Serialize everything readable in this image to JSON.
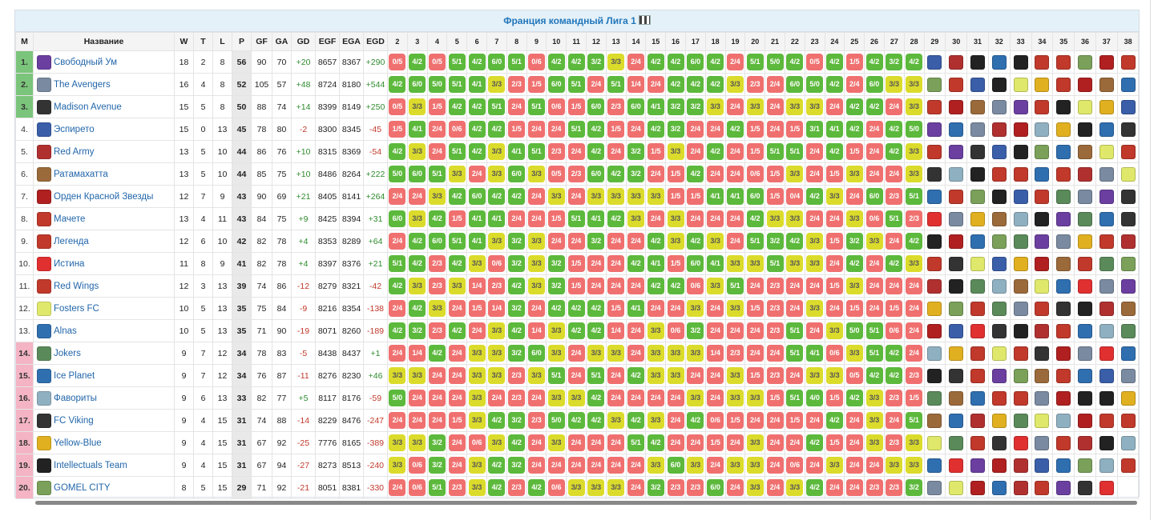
{
  "title": "Франция командный Лига 1",
  "headers": {
    "pos": "M",
    "name": "Название",
    "w": "W",
    "t": "T",
    "l": "L",
    "p": "P",
    "gf": "GF",
    "ga": "GA",
    "gd": "GD",
    "egf": "EGF",
    "ega": "EGA",
    "egd": "EGD"
  },
  "rounds": [
    "2",
    "3",
    "4",
    "5",
    "6",
    "7",
    "8",
    "9",
    "10",
    "11",
    "12",
    "13",
    "14",
    "15",
    "16",
    "17",
    "18",
    "19",
    "20",
    "21",
    "22",
    "23",
    "24",
    "25",
    "26",
    "27",
    "28",
    "29",
    "30",
    "31",
    "32",
    "33",
    "34",
    "35",
    "36",
    "37",
    "38"
  ],
  "rows": [
    {
      "pos": "1.",
      "name": "Свободный Ум",
      "w": "18",
      "t": "2",
      "l": "8",
      "p": "56",
      "gf": "90",
      "ga": "70",
      "gd": "+20",
      "egf": "8657",
      "ega": "8367",
      "egd": "+290",
      "band": "b1",
      "color": "#6b3fa0",
      "results": [
        "0/5",
        "4/2",
        "0/5",
        "5/1",
        "4/2",
        "6/0",
        "5/1",
        "0/6",
        "4/2",
        "4/2",
        "3/2",
        "3/3",
        "2/4",
        "4/2",
        "4/2",
        "6/0",
        "4/2",
        "2/4",
        "5/1",
        "5/0",
        "4/2",
        "0/5",
        "4/2",
        "1/5",
        "4/2",
        "3/2",
        "4/2"
      ],
      "opps": [
        "#3a5ea8",
        "#b03030",
        "#222222",
        "#2f6fb0",
        "#222222",
        "#c0392b",
        "#c0392b",
        "#7aa05a",
        "#b02020",
        "#c0392b"
      ]
    },
    {
      "pos": "2.",
      "name": "The Avengers",
      "w": "16",
      "t": "4",
      "l": "8",
      "p": "52",
      "gf": "105",
      "ga": "57",
      "gd": "+48",
      "egf": "8724",
      "ega": "8180",
      "egd": "+544",
      "band": "b1",
      "color": "#7a8aa0",
      "results": [
        "4/2",
        "6/0",
        "5/0",
        "5/1",
        "4/1",
        "3/3",
        "2/3",
        "1/5",
        "6/0",
        "5/1",
        "2/4",
        "5/1",
        "1/4",
        "2/4",
        "4/2",
        "4/2",
        "4/2",
        "3/3",
        "2/3",
        "2/4",
        "6/0",
        "5/0",
        "4/2",
        "2/4",
        "6/0",
        "3/3",
        "3/3"
      ],
      "opps": [
        "#7aa05a",
        "#c0392b",
        "#3a5ea8",
        "#222222",
        "#dfe86a",
        "#e0b020",
        "#c0392b",
        "#b02020",
        "#9b6a3a",
        "#2f6fb0"
      ]
    },
    {
      "pos": "3.",
      "name": "Madison Avenue",
      "w": "15",
      "t": "5",
      "l": "8",
      "p": "50",
      "gf": "88",
      "ga": "74",
      "gd": "+14",
      "egf": "8399",
      "ega": "8149",
      "egd": "+250",
      "band": "b1",
      "color": "#333333",
      "results": [
        "0/5",
        "3/3",
        "1/5",
        "4/2",
        "4/2",
        "5/1",
        "2/4",
        "5/1",
        "0/6",
        "1/5",
        "6/0",
        "2/3",
        "6/0",
        "4/1",
        "3/2",
        "3/2",
        "3/3",
        "2/4",
        "3/3",
        "2/4",
        "3/3",
        "3/3",
        "2/4",
        "4/2",
        "4/2",
        "2/4",
        "3/3"
      ],
      "opps": [
        "#c0392b",
        "#b02020",
        "#9b6a3a",
        "#7a8aa0",
        "#6b3fa0",
        "#c0392b",
        "#222222",
        "#dfe86a",
        "#e0b020",
        "#3a5ea8"
      ]
    },
    {
      "pos": "4.",
      "name": "Эспирето",
      "w": "15",
      "t": "0",
      "l": "13",
      "p": "45",
      "gf": "78",
      "ga": "80",
      "gd": "-2",
      "egf": "8300",
      "ega": "8345",
      "egd": "-45",
      "band": "",
      "color": "#3a5ea8",
      "results": [
        "1/5",
        "4/1",
        "2/4",
        "0/6",
        "4/2",
        "4/2",
        "1/5",
        "2/4",
        "2/4",
        "5/1",
        "4/2",
        "1/5",
        "2/4",
        "4/2",
        "3/2",
        "2/4",
        "2/4",
        "4/2",
        "1/5",
        "2/4",
        "1/5",
        "3/1",
        "4/1",
        "4/2",
        "2/4",
        "4/2",
        "5/0"
      ],
      "opps": [
        "#6b3fa0",
        "#2f6fb0",
        "#7a8aa0",
        "#b03030",
        "#b02020",
        "#8fb0c0",
        "#e0b020",
        "#222222",
        "#2f6fb0",
        "#333333"
      ]
    },
    {
      "pos": "5.",
      "name": "Red Army",
      "w": "13",
      "t": "5",
      "l": "10",
      "p": "44",
      "gf": "86",
      "ga": "76",
      "gd": "+10",
      "egf": "8315",
      "ega": "8369",
      "egd": "-54",
      "band": "",
      "color": "#b03030",
      "results": [
        "4/2",
        "3/3",
        "2/4",
        "5/1",
        "4/2",
        "3/3",
        "4/1",
        "5/1",
        "2/3",
        "2/4",
        "4/2",
        "2/4",
        "3/2",
        "1/5",
        "3/3",
        "2/4",
        "4/2",
        "2/4",
        "1/5",
        "5/1",
        "5/1",
        "2/4",
        "4/2",
        "1/5",
        "2/4",
        "4/2",
        "3/3"
      ],
      "opps": [
        "#c0392b",
        "#6b3fa0",
        "#333333",
        "#3a5ea8",
        "#222222",
        "#7aa05a",
        "#2f6fb0",
        "#9b6a3a",
        "#dfe86a",
        "#c0392b"
      ]
    },
    {
      "pos": "6.",
      "name": "Ратамахатта",
      "w": "13",
      "t": "5",
      "l": "10",
      "p": "44",
      "gf": "85",
      "ga": "75",
      "gd": "+10",
      "egf": "8486",
      "ega": "8264",
      "egd": "+222",
      "band": "",
      "color": "#9b6a3a",
      "results": [
        "5/0",
        "6/0",
        "5/1",
        "3/3",
        "2/4",
        "3/3",
        "6/0",
        "3/3",
        "0/5",
        "2/3",
        "6/0",
        "4/2",
        "3/2",
        "2/4",
        "1/5",
        "4/2",
        "2/4",
        "2/4",
        "0/6",
        "1/5",
        "3/3",
        "2/4",
        "1/5",
        "3/3",
        "2/4",
        "2/4",
        "3/3"
      ],
      "opps": [
        "#333333",
        "#8fb0c0",
        "#222222",
        "#c0392b",
        "#c0392b",
        "#2f6fb0",
        "#c0392b",
        "#b03030",
        "#7a8aa0",
        "#dfe86a"
      ]
    },
    {
      "pos": "7.",
      "name": "Орден Красной Звезды",
      "w": "12",
      "t": "7",
      "l": "9",
      "p": "43",
      "gf": "90",
      "ga": "69",
      "gd": "+21",
      "egf": "8405",
      "ega": "8141",
      "egd": "+264",
      "band": "",
      "color": "#b02020",
      "results": [
        "2/4",
        "2/4",
        "3/3",
        "4/2",
        "6/0",
        "4/2",
        "4/2",
        "2/4",
        "3/3",
        "2/4",
        "3/3",
        "3/3",
        "3/3",
        "3/3",
        "1/5",
        "1/5",
        "4/1",
        "4/1",
        "6/0",
        "1/5",
        "0/4",
        "4/2",
        "3/3",
        "2/4",
        "6/0",
        "2/3",
        "5/1"
      ],
      "opps": [
        "#2f6fb0",
        "#c0392b",
        "#7aa05a",
        "#222222",
        "#3a5ea8",
        "#c0392b",
        "#5a8a5a",
        "#7a8aa0",
        "#6b3fa0",
        "#333333"
      ]
    },
    {
      "pos": "8.",
      "name": "Мачете",
      "w": "13",
      "t": "4",
      "l": "11",
      "p": "43",
      "gf": "84",
      "ga": "75",
      "gd": "+9",
      "egf": "8425",
      "ega": "8394",
      "egd": "+31",
      "band": "",
      "color": "#c0392b",
      "results": [
        "6/0",
        "3/3",
        "4/2",
        "1/5",
        "4/1",
        "4/1",
        "2/4",
        "2/4",
        "1/5",
        "5/1",
        "4/1",
        "4/2",
        "3/3",
        "2/4",
        "3/3",
        "2/4",
        "2/4",
        "2/4",
        "4/2",
        "3/3",
        "3/3",
        "2/4",
        "2/4",
        "3/3",
        "0/6",
        "5/1",
        "2/3"
      ],
      "opps": [
        "#e03030",
        "#7a8aa0",
        "#e0b020",
        "#9b6a3a",
        "#8fb0c0",
        "#222222",
        "#6b3fa0",
        "#5a8a5a",
        "#2f6fb0",
        "#333333"
      ]
    },
    {
      "pos": "9.",
      "name": "Легенда",
      "w": "12",
      "t": "6",
      "l": "10",
      "p": "42",
      "gf": "82",
      "ga": "78",
      "gd": "+4",
      "egf": "8353",
      "ega": "8289",
      "egd": "+64",
      "band": "",
      "color": "#c0392b",
      "results": [
        "2/4",
        "4/2",
        "6/0",
        "5/1",
        "4/1",
        "3/3",
        "3/2",
        "3/3",
        "2/4",
        "2/4",
        "3/2",
        "2/4",
        "2/4",
        "4/2",
        "3/3",
        "4/2",
        "3/3",
        "2/4",
        "5/1",
        "3/2",
        "4/2",
        "3/3",
        "1/5",
        "3/2",
        "3/3",
        "2/4",
        "4/2"
      ],
      "opps": [
        "#222222",
        "#b02020",
        "#2f6fb0",
        "#7aa05a",
        "#5a8a5a",
        "#6b3fa0",
        "#7a8aa0",
        "#e0b020",
        "#c0392b",
        "#b03030"
      ]
    },
    {
      "pos": "10.",
      "name": "Истина",
      "w": "11",
      "t": "8",
      "l": "9",
      "p": "41",
      "gf": "82",
      "ga": "78",
      "gd": "+4",
      "egf": "8397",
      "ega": "8376",
      "egd": "+21",
      "band": "",
      "color": "#e03030",
      "results": [
        "5/1",
        "4/2",
        "2/3",
        "4/2",
        "3/3",
        "0/6",
        "3/2",
        "3/3",
        "3/2",
        "1/5",
        "2/4",
        "2/4",
        "4/2",
        "4/1",
        "1/5",
        "6/0",
        "4/1",
        "3/3",
        "3/3",
        "5/1",
        "3/3",
        "3/3",
        "2/4",
        "4/2",
        "2/4",
        "4/2",
        "3/3"
      ],
      "opps": [
        "#c0392b",
        "#333333",
        "#dfe86a",
        "#3a5ea8",
        "#e0b020",
        "#b02020",
        "#9b6a3a",
        "#c0392b",
        "#5a8a5a",
        "#7aa05a"
      ]
    },
    {
      "pos": "11.",
      "name": "Red Wings",
      "w": "12",
      "t": "3",
      "l": "13",
      "p": "39",
      "gf": "74",
      "ga": "86",
      "gd": "-12",
      "egf": "8279",
      "ega": "8321",
      "egd": "-42",
      "band": "",
      "color": "#c0392b",
      "results": [
        "4/2",
        "3/3",
        "2/3",
        "3/3",
        "1/4",
        "2/3",
        "4/2",
        "3/3",
        "3/2",
        "1/5",
        "2/4",
        "2/4",
        "2/4",
        "4/2",
        "4/2",
        "0/6",
        "3/3",
        "5/1",
        "2/4",
        "2/3",
        "2/4",
        "2/4",
        "1/5",
        "3/3",
        "2/4",
        "2/4",
        "2/4"
      ],
      "opps": [
        "#b03030",
        "#222222",
        "#5a8a5a",
        "#8fb0c0",
        "#9b6a3a",
        "#dfe86a",
        "#2f6fb0",
        "#e03030",
        "#7a8aa0",
        "#6b3fa0"
      ]
    },
    {
      "pos": "12.",
      "name": "Fosters FC",
      "w": "10",
      "t": "5",
      "l": "13",
      "p": "35",
      "gf": "75",
      "ga": "84",
      "gd": "-9",
      "egf": "8216",
      "ega": "8354",
      "egd": "-138",
      "band": "",
      "color": "#dfe86a",
      "results": [
        "2/4",
        "4/2",
        "3/3",
        "2/4",
        "1/5",
        "1/4",
        "3/2",
        "2/4",
        "4/2",
        "4/2",
        "4/2",
        "1/5",
        "4/1",
        "2/4",
        "2/4",
        "3/3",
        "2/4",
        "3/3",
        "1/5",
        "2/3",
        "2/4",
        "3/3",
        "2/4",
        "1/5",
        "2/4",
        "1/5",
        "2/4"
      ],
      "opps": [
        "#e0b020",
        "#7aa05a",
        "#c0392b",
        "#5a8a5a",
        "#7a8aa0",
        "#c0392b",
        "#333333",
        "#222222",
        "#b03030",
        "#9b6a3a"
      ]
    },
    {
      "pos": "13.",
      "name": "Alnas",
      "w": "10",
      "t": "5",
      "l": "13",
      "p": "35",
      "gf": "71",
      "ga": "90",
      "gd": "-19",
      "egf": "8071",
      "ega": "8260",
      "egd": "-189",
      "band": "",
      "color": "#2f6fb0",
      "results": [
        "4/2",
        "3/2",
        "2/3",
        "4/2",
        "2/4",
        "3/3",
        "4/2",
        "1/4",
        "3/3",
        "4/2",
        "4/2",
        "1/4",
        "2/4",
        "3/3",
        "0/6",
        "3/2",
        "2/4",
        "2/4",
        "2/4",
        "2/3",
        "5/1",
        "2/4",
        "3/3",
        "5/0",
        "5/1",
        "0/6",
        "2/4"
      ],
      "opps": [
        "#b02020",
        "#3a5ea8",
        "#e03030",
        "#333333",
        "#222222",
        "#b03030",
        "#c0392b",
        "#2f6fb0",
        "#8fb0c0",
        "#5a8a5a"
      ]
    },
    {
      "pos": "14.",
      "name": "Jokers",
      "w": "9",
      "t": "7",
      "l": "12",
      "p": "34",
      "gf": "78",
      "ga": "83",
      "gd": "-5",
      "egf": "8438",
      "ega": "8437",
      "egd": "+1",
      "band": "b2",
      "color": "#5a8a5a",
      "results": [
        "2/4",
        "1/4",
        "4/2",
        "2/4",
        "3/3",
        "3/3",
        "3/2",
        "6/0",
        "3/3",
        "2/4",
        "3/3",
        "3/3",
        "2/4",
        "3/3",
        "3/3",
        "3/3",
        "1/4",
        "2/3",
        "2/4",
        "2/4",
        "5/1",
        "4/1",
        "0/6",
        "3/3",
        "5/1",
        "4/2",
        "2/4"
      ],
      "opps": [
        "#8fb0c0",
        "#e0b020",
        "#c0392b",
        "#dfe86a",
        "#c0392b",
        "#333333",
        "#b02020",
        "#7a8aa0",
        "#e03030",
        "#2f6fb0"
      ]
    },
    {
      "pos": "15.",
      "name": "Ice Planet",
      "w": "9",
      "t": "7",
      "l": "12",
      "p": "34",
      "gf": "76",
      "ga": "87",
      "gd": "-11",
      "egf": "8276",
      "ega": "8230",
      "egd": "+46",
      "band": "b2",
      "color": "#2f6fb0",
      "results": [
        "3/3",
        "3/3",
        "2/4",
        "2/4",
        "3/3",
        "3/3",
        "2/3",
        "3/3",
        "5/1",
        "2/4",
        "5/1",
        "2/4",
        "4/2",
        "3/3",
        "3/3",
        "2/4",
        "2/4",
        "3/3",
        "1/5",
        "2/3",
        "2/4",
        "3/3",
        "3/3",
        "0/5",
        "4/2",
        "4/2",
        "2/3"
      ],
      "opps": [
        "#222222",
        "#333333",
        "#c0392b",
        "#6b3fa0",
        "#7aa05a",
        "#9b6a3a",
        "#c0392b",
        "#2f6fb0",
        "#3a5ea8",
        "#7a8aa0"
      ]
    },
    {
      "pos": "16.",
      "name": "Фавориты",
      "w": "9",
      "t": "6",
      "l": "13",
      "p": "33",
      "gf": "82",
      "ga": "77",
      "gd": "+5",
      "egf": "8117",
      "ega": "8176",
      "egd": "-59",
      "band": "b2",
      "color": "#8fb0c0",
      "results": [
        "5/0",
        "2/4",
        "2/4",
        "2/4",
        "3/3",
        "2/4",
        "2/3",
        "2/4",
        "3/3",
        "3/3",
        "4/2",
        "2/4",
        "2/4",
        "2/4",
        "2/4",
        "3/3",
        "2/4",
        "3/3",
        "3/3",
        "1/5",
        "5/1",
        "4/0",
        "1/5",
        "4/2",
        "3/3",
        "2/3",
        "1/5"
      ],
      "opps": [
        "#5a8a5a",
        "#9b6a3a",
        "#2f6fb0",
        "#c0392b",
        "#c0392b",
        "#7a8aa0",
        "#b02020",
        "#222222",
        "#222222",
        "#e0b020"
      ]
    },
    {
      "pos": "17.",
      "name": "FC Viking",
      "w": "9",
      "t": "4",
      "l": "15",
      "p": "31",
      "gf": "74",
      "ga": "88",
      "gd": "-14",
      "egf": "8229",
      "ega": "8476",
      "egd": "-247",
      "band": "b2",
      "color": "#333333",
      "results": [
        "2/4",
        "2/4",
        "2/4",
        "1/5",
        "3/3",
        "4/2",
        "3/2",
        "2/3",
        "5/0",
        "4/2",
        "4/2",
        "3/3",
        "4/2",
        "3/3",
        "2/4",
        "4/2",
        "0/6",
        "1/5",
        "2/4",
        "2/4",
        "1/5",
        "2/4",
        "4/2",
        "2/4",
        "3/3",
        "2/4",
        "5/1"
      ],
      "opps": [
        "#9b6a3a",
        "#2f6fb0",
        "#b03030",
        "#e0b020",
        "#5a8a5a",
        "#dfe86a",
        "#8fb0c0",
        "#b02020",
        "#c0392b",
        "#c0392b"
      ]
    },
    {
      "pos": "18.",
      "name": "Yellow-Blue",
      "w": "9",
      "t": "4",
      "l": "15",
      "p": "31",
      "gf": "67",
      "ga": "92",
      "gd": "-25",
      "egf": "7776",
      "ega": "8165",
      "egd": "-389",
      "band": "b2",
      "color": "#e0b020",
      "results": [
        "3/3",
        "3/3",
        "3/2",
        "2/4",
        "0/6",
        "3/3",
        "4/2",
        "2/4",
        "3/3",
        "2/4",
        "2/4",
        "2/4",
        "5/1",
        "4/2",
        "2/4",
        "2/4",
        "1/5",
        "2/4",
        "3/3",
        "2/4",
        "2/4",
        "4/2",
        "1/5",
        "2/4",
        "3/3",
        "2/3",
        "3/3"
      ],
      "opps": [
        "#dfe86a",
        "#5a8a5a",
        "#c0392b",
        "#333333",
        "#e03030",
        "#7a8aa0",
        "#c0392b",
        "#b03030",
        "#222222",
        "#8fb0c0"
      ]
    },
    {
      "pos": "19.",
      "name": "Intellectuals Team",
      "w": "9",
      "t": "4",
      "l": "15",
      "p": "31",
      "gf": "67",
      "ga": "94",
      "gd": "-27",
      "egf": "8273",
      "ega": "8513",
      "egd": "-240",
      "band": "b2",
      "color": "#222222",
      "results": [
        "3/3",
        "0/6",
        "3/2",
        "2/4",
        "3/3",
        "4/2",
        "3/2",
        "2/4",
        "2/4",
        "2/4",
        "2/4",
        "2/4",
        "2/4",
        "3/3",
        "6/0",
        "3/3",
        "2/4",
        "3/3",
        "3/3",
        "2/4",
        "0/6",
        "2/4",
        "3/3",
        "2/4",
        "2/4",
        "3/3",
        "3/3"
      ],
      "opps": [
        "#2f6fb0",
        "#e03030",
        "#6b3fa0",
        "#b02020",
        "#b03030",
        "#3a5ea8",
        "#2f6fb0",
        "#7aa05a",
        "#8fb0c0",
        "#c0392b"
      ]
    },
    {
      "pos": "20.",
      "name": "GOMEL CITY",
      "w": "8",
      "t": "5",
      "l": "15",
      "p": "29",
      "gf": "71",
      "ga": "92",
      "gd": "-21",
      "egf": "8051",
      "ega": "8381",
      "egd": "-330",
      "band": "b2",
      "color": "#7aa05a",
      "results": [
        "2/4",
        "0/6",
        "5/1",
        "2/3",
        "3/3",
        "4/2",
        "2/3",
        "4/2",
        "0/6",
        "3/3",
        "3/3",
        "3/3",
        "2/4",
        "3/2",
        "2/3",
        "2/3",
        "6/0",
        "2/4",
        "3/3",
        "2/4",
        "3/3",
        "4/2",
        "2/4",
        "2/4",
        "2/3",
        "2/3",
        "3/2"
      ],
      "opps": [
        "#7a8aa0",
        "#dfe86a",
        "#b02020",
        "#2f6fb0",
        "#b03030",
        "#c0392b",
        "#6b3fa0",
        "#333333",
        "#e03030"
      ]
    }
  ]
}
